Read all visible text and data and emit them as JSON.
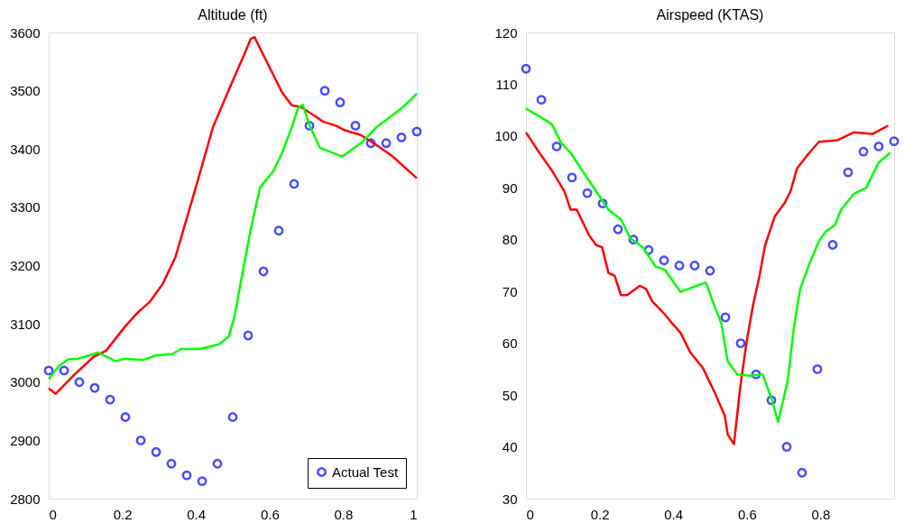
{
  "chart_data": [
    {
      "type": "line",
      "title": "Altitude (ft)",
      "xlim": [
        0,
        1
      ],
      "xticks": [
        0,
        0.2,
        0.4,
        0.6,
        0.8,
        1
      ],
      "ylim": [
        2800,
        3600
      ],
      "yticks": [
        2800,
        2900,
        3000,
        3100,
        3200,
        3300,
        3400,
        3500,
        3600
      ],
      "grid": false,
      "legend": "bottom right",
      "series": [
        {
          "name": "Actual Test",
          "type": "scatter",
          "marker": "circle",
          "color": "#0000ff",
          "x": [
            0,
            0.0417,
            0.0833,
            0.125,
            0.1667,
            0.2083,
            0.25,
            0.2917,
            0.3333,
            0.375,
            0.4167,
            0.4583,
            0.5,
            0.5417,
            0.5833,
            0.625,
            0.6667,
            0.7083,
            0.75,
            0.7917,
            0.8333,
            0.875,
            0.9167,
            0.9583,
            1
          ],
          "values": [
            3020,
            3020,
            3000,
            2990,
            2970,
            2940,
            2900,
            2880,
            2860,
            2840,
            2830,
            2860,
            2940,
            3080,
            3190,
            3260,
            3340,
            3440,
            3500,
            3480,
            3440,
            3410,
            3410,
            3420,
            3430
          ]
        },
        {
          "color": "#ff0000",
          "x": [
            0,
            0.019,
            0.07,
            0.121,
            0.156,
            0.207,
            0.241,
            0.275,
            0.309,
            0.344,
            0.395,
            0.446,
            0.497,
            0.531,
            0.549,
            0.559,
            0.6,
            0.634,
            0.66,
            0.685,
            0.72,
            0.745,
            0.78,
            0.805,
            0.848,
            0.89,
            0.933,
            1
          ],
          "values": [
            2989,
            2980,
            3013,
            3043,
            3054,
            3095,
            3119,
            3138,
            3168,
            3214,
            3324,
            3437,
            3513,
            3562,
            3589,
            3592,
            3540,
            3497,
            3475,
            3472,
            3458,
            3447,
            3440,
            3432,
            3424,
            3407,
            3388,
            3350
          ]
        },
        {
          "color": "#00ff00",
          "x": [
            0,
            0.027,
            0.053,
            0.079,
            0.121,
            0.134,
            0.181,
            0.207,
            0.258,
            0.292,
            0.335,
            0.361,
            0.412,
            0.463,
            0.489,
            0.506,
            0.523,
            0.549,
            0.574,
            0.609,
            0.634,
            0.66,
            0.677,
            0.69,
            0.711,
            0.737,
            0.797,
            0.848,
            0.89,
            0.959,
            1
          ],
          "values": [
            3005,
            3027,
            3039,
            3040,
            3048,
            3051,
            3036,
            3040,
            3038,
            3046,
            3048,
            3057,
            3057,
            3065,
            3078,
            3116,
            3176,
            3263,
            3334,
            3361,
            3393,
            3437,
            3470,
            3476,
            3437,
            3402,
            3387,
            3410,
            3437,
            3470,
            3495
          ]
        }
      ]
    },
    {
      "type": "line",
      "title": "Airspeed (KTAS)",
      "xlim": [
        0,
        1
      ],
      "xticks": [
        0,
        0.2,
        0.4,
        0.6,
        0.8
      ],
      "ylim": [
        30,
        120
      ],
      "yticks": [
        30,
        40,
        50,
        60,
        70,
        80,
        90,
        100,
        110,
        120
      ],
      "grid": false,
      "series": [
        {
          "type": "scatter",
          "marker": "circle",
          "color": "#0000ff",
          "x": [
            0,
            0.0417,
            0.0833,
            0.125,
            0.1667,
            0.2083,
            0.25,
            0.2917,
            0.3333,
            0.375,
            0.4167,
            0.4583,
            0.5,
            0.5417,
            0.5833,
            0.625,
            0.6667,
            0.7083,
            0.75,
            0.7917,
            0.8333,
            0.875,
            0.9167,
            0.9583,
            1
          ],
          "values": [
            113,
            107,
            98,
            92,
            89,
            87,
            82,
            80,
            78,
            76,
            75,
            75,
            74,
            65,
            60,
            54,
            49,
            40,
            35,
            55,
            79,
            93,
            97,
            98,
            99
          ]
        },
        {
          "color": "#ff0000",
          "x": [
            0,
            0.036,
            0.07,
            0.104,
            0.121,
            0.138,
            0.171,
            0.19,
            0.207,
            0.224,
            0.241,
            0.258,
            0.275,
            0.309,
            0.326,
            0.343,
            0.377,
            0.394,
            0.42,
            0.446,
            0.48,
            0.514,
            0.54,
            0.548,
            0.565,
            0.582,
            0.6,
            0.617,
            0.634,
            0.65,
            0.676,
            0.702,
            0.719,
            0.736,
            0.77,
            0.796,
            0.847,
            0.89,
            0.941,
            0.984
          ],
          "values": [
            100.7,
            96.8,
            93.4,
            89.4,
            85.8,
            85.8,
            80.9,
            79,
            78.5,
            73.6,
            73,
            69.3,
            69.3,
            71.1,
            70.5,
            68.1,
            65.6,
            64.1,
            62,
            58.3,
            55.3,
            50.3,
            46,
            42.4,
            40.5,
            51.5,
            60.6,
            67.4,
            72.9,
            79,
            84.5,
            87,
            89.4,
            93.7,
            96.8,
            98.9,
            99.2,
            100.7,
            100.4,
            102
          ]
        },
        {
          "color": "#00ff00",
          "x": [
            0,
            0.036,
            0.07,
            0.096,
            0.121,
            0.155,
            0.19,
            0.224,
            0.258,
            0.283,
            0.318,
            0.352,
            0.377,
            0.42,
            0.463,
            0.489,
            0.514,
            0.531,
            0.548,
            0.574,
            0.609,
            0.643,
            0.668,
            0.685,
            0.711,
            0.728,
            0.745,
            0.77,
            0.796,
            0.813,
            0.839,
            0.856,
            0.89,
            0.924,
            0.958,
            0.99
          ],
          "values": [
            105.3,
            103.8,
            102.3,
            98.6,
            96.8,
            93.1,
            89.4,
            85.8,
            83.9,
            80.3,
            78.5,
            74.8,
            74.2,
            69.9,
            71.1,
            71.7,
            66.8,
            63.8,
            56.5,
            54,
            53.7,
            54,
            49.1,
            44.8,
            52.8,
            63.2,
            70.5,
            75.4,
            79.7,
            81.5,
            82.8,
            85.8,
            88.8,
            90,
            94.9,
            96.8
          ]
        }
      ]
    }
  ]
}
